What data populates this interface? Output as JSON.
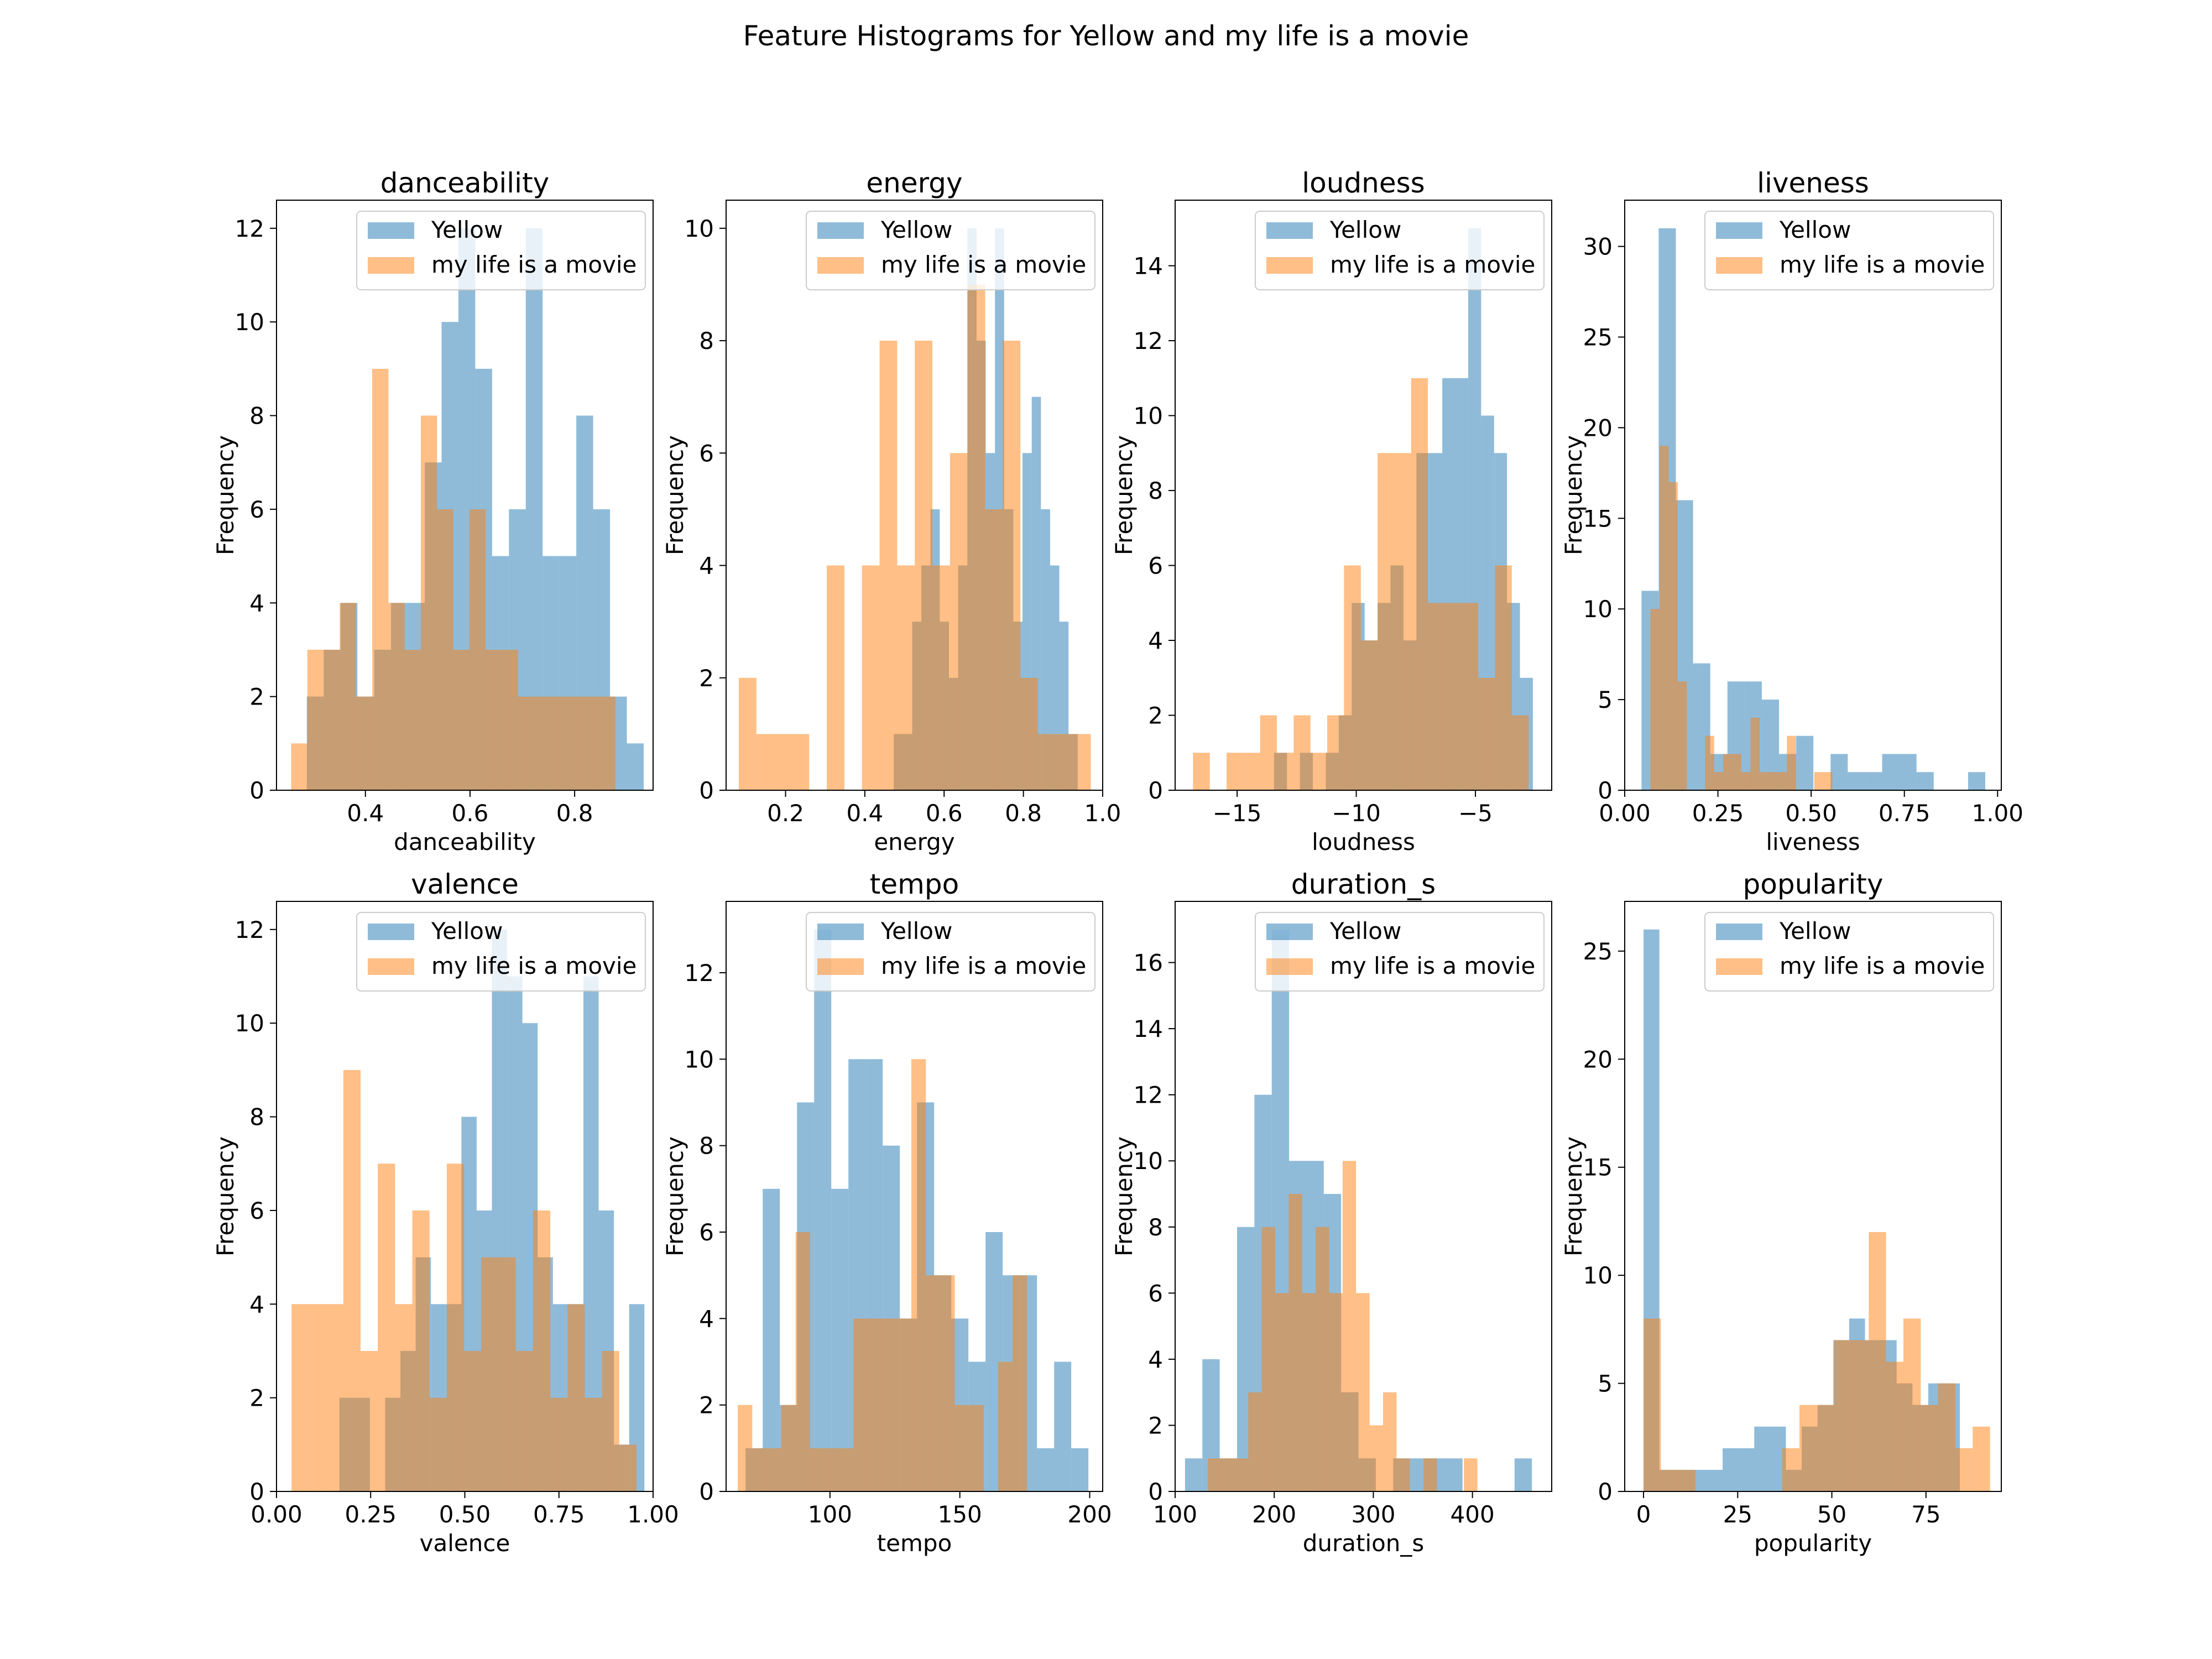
{
  "figure": {
    "title": "Feature Histograms for Yellow and my life is a movie"
  },
  "colors": {
    "series_a": "#1f77b4",
    "series_b": "#ff7f0e",
    "bar_opacity": 0.5,
    "axis": "#000000",
    "legend_border": "#cccccc"
  },
  "chart_data": [
    {
      "type": "bar",
      "title": "danceability",
      "xlabel": "danceability",
      "ylabel": "Frequency",
      "xlim": [
        0.23,
        0.95
      ],
      "ylim": [
        0,
        12.6
      ],
      "xticks": [
        0.4,
        0.6,
        0.8
      ],
      "xtick_labels": [
        "0.4",
        "0.6",
        "0.8"
      ],
      "yticks": [
        0,
        2,
        4,
        6,
        8,
        10,
        12
      ],
      "legend_position": "top-right",
      "series": [
        {
          "name": "Yellow",
          "bins": {
            "start": 0.288,
            "width": 0.0322,
            "counts": [
              2,
              3,
              4,
              2,
              3,
              4,
              4,
              7,
              10,
              12,
              9,
              5,
              6,
              12,
              5,
              5,
              8,
              6,
              2,
              1
            ]
          }
        },
        {
          "name": "my life is a movie",
          "bins": {
            "start": 0.258,
            "width": 0.031,
            "counts": [
              1,
              3,
              3,
              4,
              2,
              9,
              4,
              3,
              8,
              6,
              3,
              6,
              3,
              3,
              2,
              2,
              2,
              2,
              2,
              2
            ]
          }
        }
      ]
    },
    {
      "type": "bar",
      "title": "energy",
      "xlabel": "energy",
      "ylabel": "Frequency",
      "xlim": [
        0.05,
        1.0
      ],
      "ylim": [
        0,
        10.5
      ],
      "xticks": [
        0.2,
        0.4,
        0.6,
        0.8,
        1.0
      ],
      "xtick_labels": [
        "0.2",
        "0.4",
        "0.6",
        "0.8",
        "1.0"
      ],
      "yticks": [
        0,
        2,
        4,
        6,
        8,
        10
      ],
      "legend_position": "top-right",
      "series": [
        {
          "name": "Yellow",
          "bins": {
            "start": 0.473,
            "width": 0.0232,
            "counts": [
              1,
              1,
              3,
              4,
              5,
              3,
              2,
              4,
              10,
              8,
              6,
              10,
              5,
              3,
              6,
              7,
              5,
              4,
              3,
              1
            ]
          }
        },
        {
          "name": "my life is a movie",
          "bins": {
            "start": 0.082,
            "width": 0.0444,
            "counts": [
              2,
              1,
              1,
              1,
              0,
              4,
              0,
              4,
              8,
              4,
              8,
              4,
              6,
              9,
              5,
              8,
              2,
              1,
              1,
              1
            ]
          }
        }
      ]
    },
    {
      "type": "bar",
      "title": "loudness",
      "xlabel": "loudness",
      "ylabel": "Frequency",
      "xlim": [
        -17.6,
        -1.8
      ],
      "ylim": [
        0,
        15.75
      ],
      "xticks": [
        -15,
        -10,
        -5
      ],
      "xtick_labels": [
        "−15",
        "−10",
        "−5"
      ],
      "yticks": [
        0,
        2,
        4,
        6,
        8,
        10,
        12,
        14
      ],
      "legend_position": "top-right",
      "series": [
        {
          "name": "Yellow",
          "bins": {
            "start": -13.45,
            "width": 0.543,
            "counts": [
              1,
              0,
              1,
              0,
              1,
              2,
              5,
              4,
              5,
              6,
              4,
              9,
              9,
              11,
              11,
              15,
              10,
              9,
              5,
              3
            ]
          }
        },
        {
          "name": "my life is a movie",
          "bins": {
            "start": -16.85,
            "width": 0.704,
            "counts": [
              1,
              0,
              1,
              1,
              2,
              1,
              2,
              1,
              2,
              6,
              4,
              9,
              9,
              11,
              5,
              5,
              5,
              3,
              6,
              2
            ]
          }
        }
      ]
    },
    {
      "type": "bar",
      "title": "liveness",
      "xlabel": "liveness",
      "ylabel": "Frequency",
      "xlim": [
        0.0,
        1.01
      ],
      "ylim": [
        0,
        32.55
      ],
      "xticks": [
        0.0,
        0.25,
        0.5,
        0.75,
        1.0
      ],
      "xtick_labels": [
        "0.00",
        "0.25",
        "0.50",
        "0.75",
        "1.00"
      ],
      "yticks": [
        0,
        5,
        10,
        15,
        20,
        25,
        30
      ],
      "legend_position": "top-right",
      "series": [
        {
          "name": "Yellow",
          "bins": {
            "start": 0.045,
            "width": 0.0461,
            "counts": [
              11,
              31,
              16,
              7,
              2,
              6,
              6,
              5,
              2,
              3,
              0,
              2,
              1,
              1,
              2,
              2,
              1,
              0,
              0,
              1
            ]
          }
        },
        {
          "name": "my life is a movie",
          "bins": {
            "start": 0.069,
            "width": 0.0244,
            "counts": [
              10,
              19,
              17,
              6,
              0,
              0,
              3,
              1,
              2,
              2,
              1,
              4,
              1,
              1,
              1,
              3,
              0,
              0,
              1,
              1
            ]
          }
        }
      ]
    },
    {
      "type": "bar",
      "title": "valence",
      "xlabel": "valence",
      "ylabel": "Frequency",
      "xlim": [
        0.0,
        1.0
      ],
      "ylim": [
        0,
        12.6
      ],
      "xticks": [
        0.0,
        0.25,
        0.5,
        0.75,
        1.0
      ],
      "xtick_labels": [
        "0.00",
        "0.25",
        "0.50",
        "0.75",
        "1.00"
      ],
      "yticks": [
        0,
        2,
        4,
        6,
        8,
        10,
        12
      ],
      "legend_position": "top-right",
      "series": [
        {
          "name": "Yellow",
          "bins": {
            "start": 0.167,
            "width": 0.0405,
            "counts": [
              2,
              2,
              0,
              2,
              3,
              5,
              4,
              4,
              8,
              6,
              12,
              11,
              10,
              5,
              4,
              4,
              11,
              6,
              1,
              4
            ]
          }
        },
        {
          "name": "my life is a movie",
          "bins": {
            "start": 0.04,
            "width": 0.0458,
            "counts": [
              4,
              4,
              4,
              9,
              3,
              7,
              4,
              6,
              2,
              7,
              3,
              5,
              5,
              3,
              6,
              2,
              4,
              2,
              3,
              1
            ]
          }
        }
      ]
    },
    {
      "type": "bar",
      "title": "tempo",
      "xlabel": "tempo",
      "ylabel": "Frequency",
      "xlim": [
        60,
        205
      ],
      "ylim": [
        0,
        13.65
      ],
      "xticks": [
        100,
        150,
        200
      ],
      "xtick_labels": [
        "100",
        "150",
        "200"
      ],
      "yticks": [
        0,
        2,
        4,
        6,
        8,
        10,
        12
      ],
      "legend_position": "top-right",
      "series": [
        {
          "name": "Yellow",
          "bins": {
            "start": 67.5,
            "width": 6.6,
            "counts": [
              1,
              7,
              2,
              9,
              13,
              7,
              10,
              10,
              8,
              4,
              9,
              5,
              4,
              3,
              6,
              5,
              5,
              1,
              3,
              1
            ]
          }
        },
        {
          "name": "my life is a movie",
          "bins": {
            "start": 64.5,
            "width": 5.57,
            "counts": [
              2,
              1,
              1,
              2,
              6,
              1,
              1,
              1,
              4,
              4,
              4,
              4,
              10,
              5,
              5,
              2,
              2,
              0,
              3,
              5
            ]
          }
        }
      ]
    },
    {
      "type": "bar",
      "title": "duration_s",
      "xlabel": "duration_s",
      "ylabel": "Frequency",
      "xlim": [
        100,
        480
      ],
      "ylim": [
        0,
        17.85
      ],
      "xticks": [
        100,
        200,
        300,
        400
      ],
      "xtick_labels": [
        "100",
        "200",
        "300",
        "400"
      ],
      "yticks": [
        0,
        2,
        4,
        6,
        8,
        10,
        12,
        14,
        16
      ],
      "legend_position": "top-right",
      "series": [
        {
          "name": "Yellow",
          "bins": {
            "start": 110,
            "width": 17.5,
            "counts": [
              1,
              4,
              1,
              8,
              12,
              17,
              10,
              10,
              9,
              3,
              1,
              0,
              1,
              1,
              1,
              1,
              0,
              0,
              0,
              1
            ]
          }
        },
        {
          "name": "my life is a movie",
          "bins": {
            "start": 133,
            "width": 13.6,
            "counts": [
              1,
              1,
              1,
              3,
              8,
              6,
              9,
              6,
              8,
              6,
              10,
              6,
              2,
              3,
              1,
              0,
              1,
              0,
              0,
              1
            ]
          }
        }
      ]
    },
    {
      "type": "bar",
      "title": "popularity",
      "xlabel": "popularity",
      "ylabel": "Frequency",
      "xlim": [
        -5,
        95
      ],
      "ylim": [
        0,
        27.3
      ],
      "xticks": [
        0,
        25,
        50,
        75
      ],
      "xtick_labels": [
        "0",
        "25",
        "50",
        "75"
      ],
      "yticks": [
        0,
        5,
        10,
        15,
        20,
        25
      ],
      "legend_position": "top-right",
      "series": [
        {
          "name": "Yellow",
          "bins": {
            "start": 0,
            "width": 4.2,
            "counts": [
              26,
              1,
              1,
              1,
              1,
              2,
              2,
              3,
              3,
              1,
              3,
              4,
              7,
              8,
              7,
              7,
              5,
              4,
              5,
              5
            ]
          }
        },
        {
          "name": "my life is a movie",
          "bins": {
            "start": 0,
            "width": 4.6,
            "counts": [
              8,
              1,
              1,
              0,
              0,
              0,
              0,
              0,
              2,
              4,
              4,
              7,
              7,
              12,
              6,
              8,
              4,
              5,
              2,
              3
            ]
          }
        }
      ]
    }
  ]
}
